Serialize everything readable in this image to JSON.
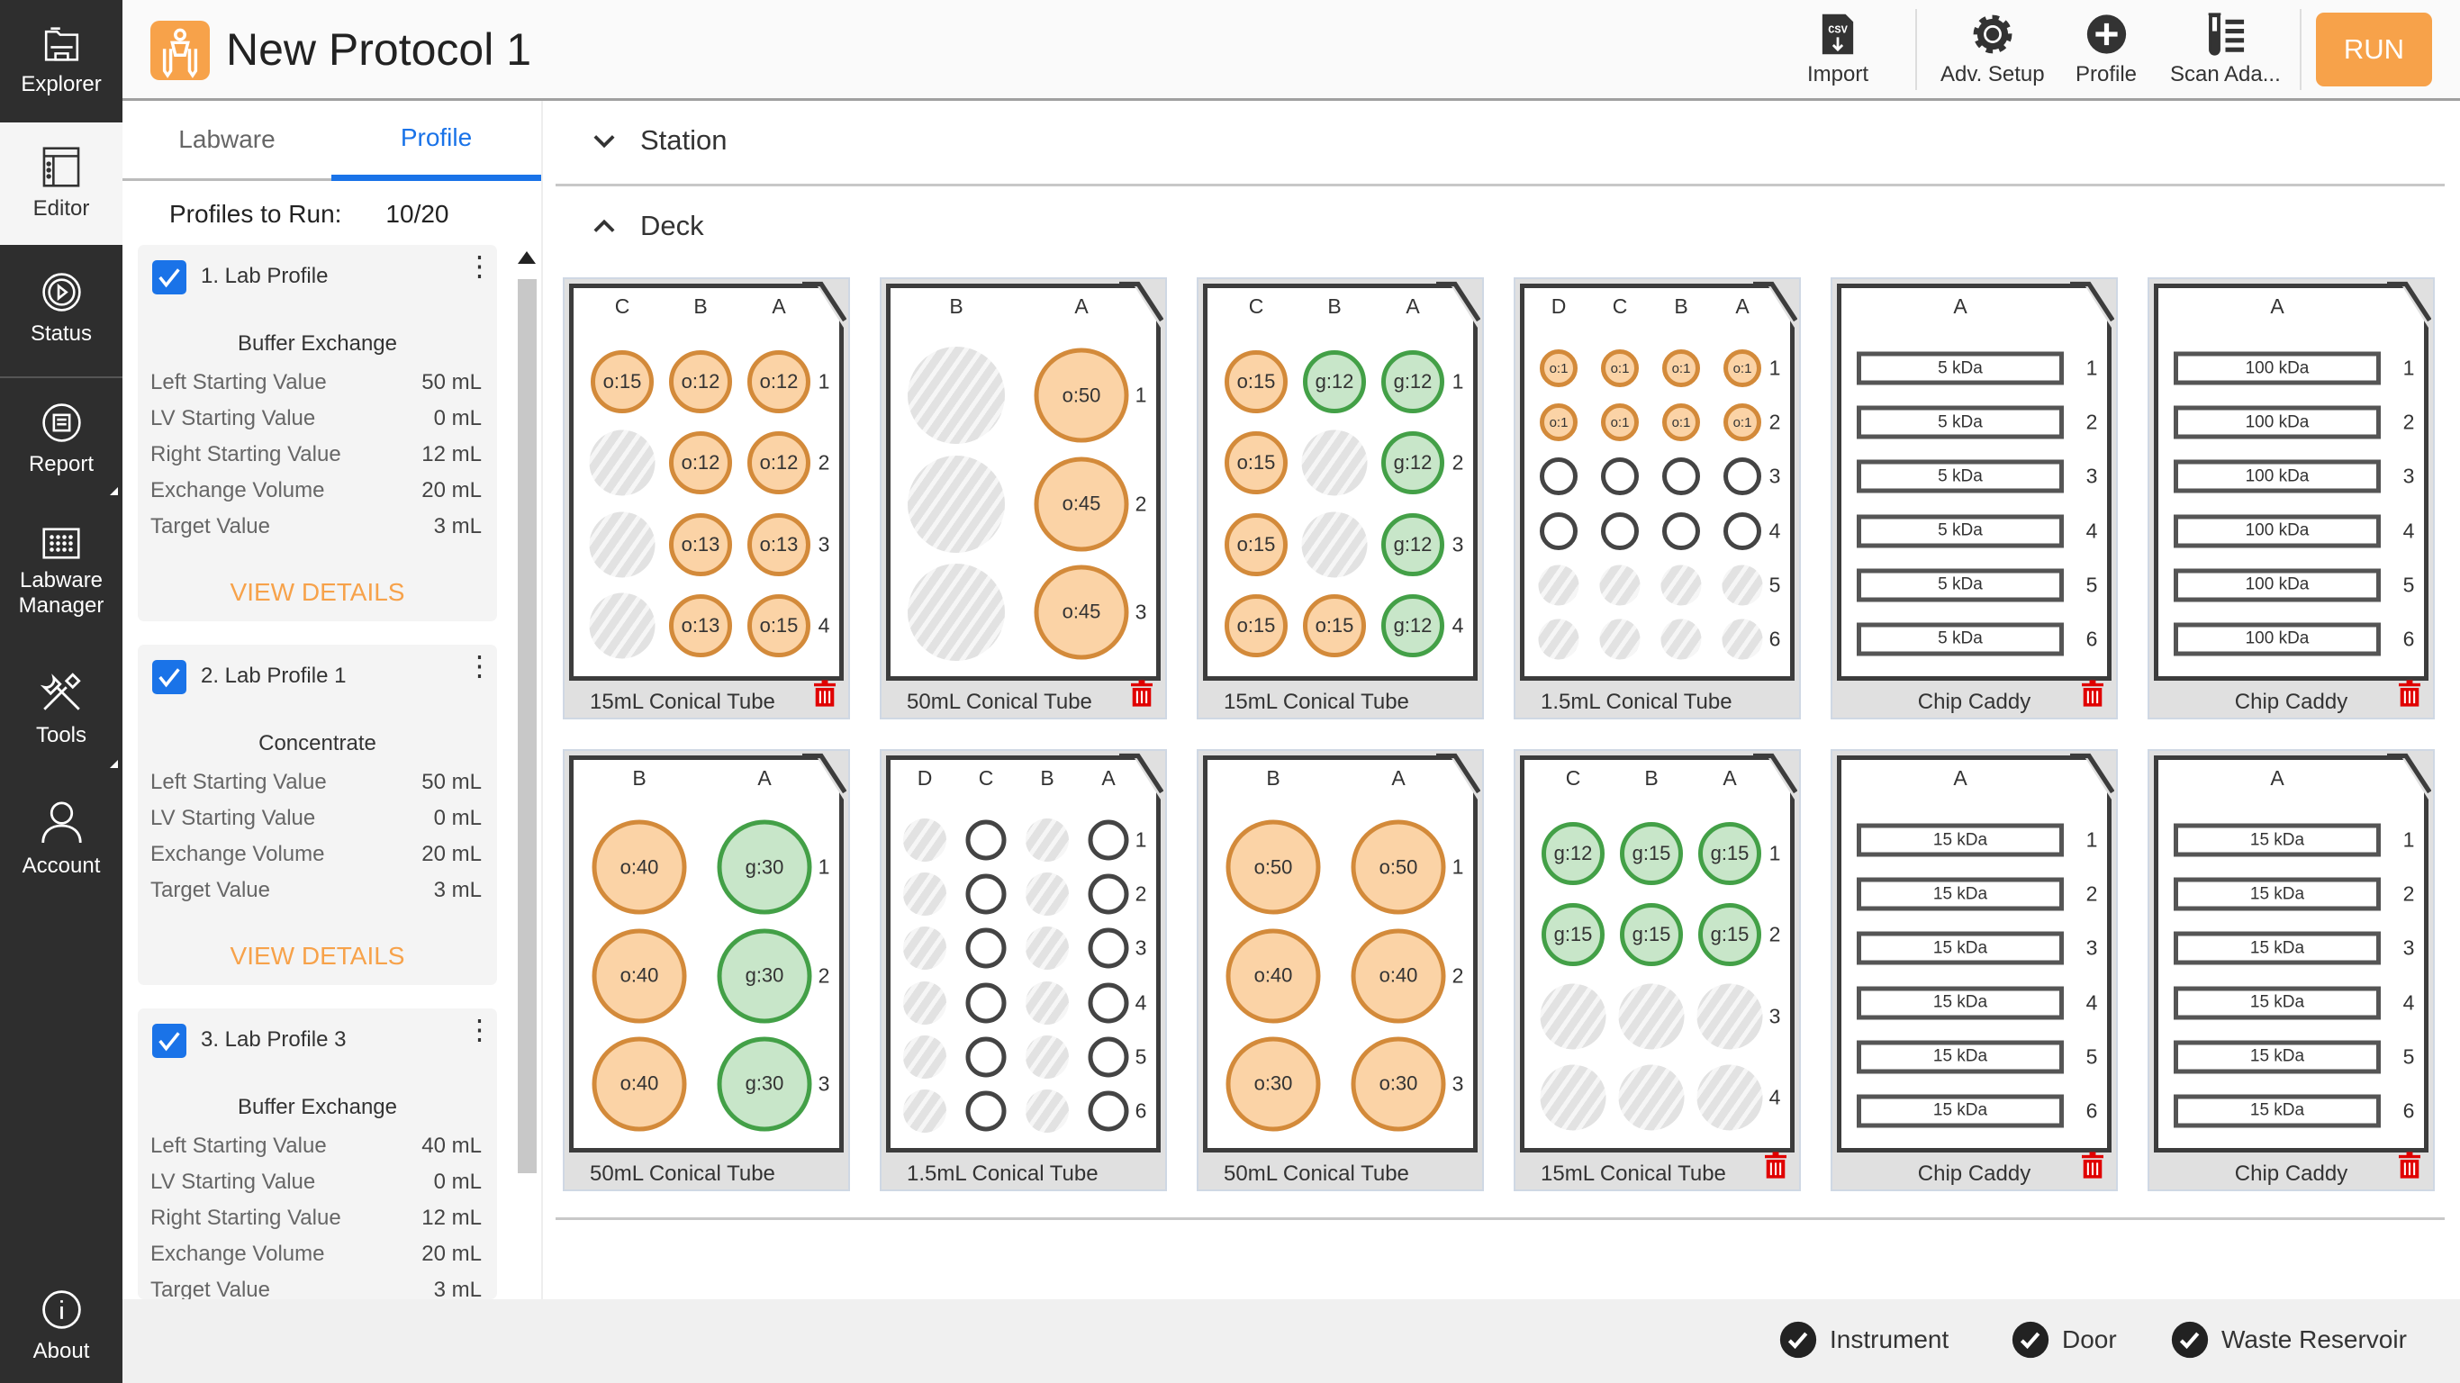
{
  "app": {
    "title": "New Protocol 1"
  },
  "sidebar": {
    "items": [
      {
        "label": "Explorer",
        "icon": "explorer-icon"
      },
      {
        "label": "Editor",
        "icon": "editor-icon"
      },
      {
        "label": "Status",
        "icon": "status-icon"
      },
      {
        "label": "Report",
        "icon": "report-icon"
      },
      {
        "label": "Labware Manager",
        "icon": "labware-manager-icon"
      },
      {
        "label": "Tools",
        "icon": "tools-icon"
      },
      {
        "label": "Account",
        "icon": "account-icon"
      }
    ],
    "about": "About"
  },
  "toolbar": {
    "import": "Import",
    "adv_setup": "Adv. Setup",
    "profile": "Profile",
    "scan": "Scan Ada...",
    "run": "RUN"
  },
  "left_panel": {
    "tabs": [
      {
        "label": "Labware"
      },
      {
        "label": "Profile",
        "active": true
      }
    ],
    "profiles_to_run_label": "Profiles to Run:",
    "profiles_to_run_value": "10/20",
    "profiles": [
      {
        "name": "1. Lab Profile",
        "checked": true,
        "type": "Buffer Exchange",
        "fields": [
          [
            "Left Starting Value",
            "50 mL"
          ],
          [
            "LV Starting Value",
            "0 mL"
          ],
          [
            "Right Starting Value",
            "12 mL"
          ],
          [
            "Exchange Volume",
            "20 mL"
          ],
          [
            "Target Value",
            "3 mL"
          ]
        ],
        "link": "VIEW DETAILS"
      },
      {
        "name": "2. Lab Profile 1",
        "checked": true,
        "type": "Concentrate",
        "fields": [
          [
            "Left Starting Value",
            "50 mL"
          ],
          [
            "LV Starting Value",
            "0 mL"
          ],
          [
            "Exchange Volume",
            "20 mL"
          ],
          [
            "Target Value",
            "3 mL"
          ]
        ],
        "link": "VIEW DETAILS"
      },
      {
        "name": "3. Lab Profile 3",
        "checked": true,
        "type": "Buffer Exchange",
        "fields": [
          [
            "Left Starting Value",
            "40 mL"
          ],
          [
            "LV Starting Value",
            "0 mL"
          ],
          [
            "Right Starting Value",
            "12 mL"
          ],
          [
            "Exchange Volume",
            "20 mL"
          ],
          [
            "Target Value",
            "3 mL"
          ]
        ]
      }
    ]
  },
  "main": {
    "station_label": "Station",
    "deck_label": "Deck"
  },
  "colors": {
    "accent": "#1a73e8",
    "run": "#f7a24a",
    "well_orange": "#fbd3a6",
    "well_green": "#c8e6c9",
    "trash": "#e00000"
  },
  "racks": [
    {
      "name": "15mL Conical Tube",
      "cols": [
        "C",
        "B",
        "A"
      ],
      "size": 40,
      "trash": true,
      "wells": [
        [
          "o:15",
          "o:12",
          "o:12"
        ],
        [
          "x",
          "o:12",
          "o:12"
        ],
        [
          "x",
          "o:13",
          "o:13"
        ],
        [
          "x",
          "o:13",
          "o:15"
        ]
      ]
    },
    {
      "name": "50mL Conical Tube",
      "cols": [
        "B",
        "A"
      ],
      "size": 60,
      "trash": true,
      "wells": [
        [
          "x",
          "o:50"
        ],
        [
          "x",
          "o:45"
        ],
        [
          "x",
          "o:45"
        ]
      ]
    },
    {
      "name": "15mL Conical Tube",
      "cols": [
        "C",
        "B",
        "A"
      ],
      "size": 40,
      "trash": false,
      "wells": [
        [
          "o:15",
          "g:12",
          "g:12"
        ],
        [
          "o:15",
          "x",
          "g:12"
        ],
        [
          "o:15",
          "x",
          "g:12"
        ],
        [
          "o:15",
          "o:15",
          "g:12"
        ]
      ]
    },
    {
      "name": "1.5mL Conical Tube",
      "cols": [
        "D",
        "C",
        "B",
        "A"
      ],
      "size": 24,
      "trash": false,
      "wells": [
        [
          "o:1",
          "o:1",
          "o:1",
          "o:1"
        ],
        [
          "o:1",
          "o:1",
          "o:1",
          "o:1"
        ],
        [
          "e",
          "e",
          "e",
          "e"
        ],
        [
          "e",
          "e",
          "e",
          "e"
        ],
        [
          "x",
          "x",
          "x",
          "x"
        ],
        [
          "x",
          "x",
          "x",
          "x"
        ]
      ]
    },
    {
      "name": "Chip Caddy",
      "cols": [
        "A"
      ],
      "chips": [
        "5 kDa",
        "5 kDa",
        "5 kDa",
        "5 kDa",
        "5 kDa",
        "5 kDa"
      ],
      "trash": true
    },
    {
      "name": "Chip Caddy",
      "cols": [
        "A"
      ],
      "chips": [
        "100 kDa",
        "100 kDa",
        "100 kDa",
        "100 kDa",
        "100 kDa",
        "100 kDa"
      ],
      "trash": true
    },
    {
      "name": "50mL Conical Tube",
      "cols": [
        "B",
        "A"
      ],
      "size": 60,
      "trash": false,
      "wells": [
        [
          "o:40",
          "g:30"
        ],
        [
          "o:40",
          "g:30"
        ],
        [
          "o:40",
          "g:30"
        ]
      ]
    },
    {
      "name": "1.5mL Conical Tube",
      "cols": [
        "D",
        "C",
        "B",
        "A"
      ],
      "size": 26,
      "trash": false,
      "wells": [
        [
          "x",
          "e",
          "x",
          "e"
        ],
        [
          "x",
          "e",
          "x",
          "e"
        ],
        [
          "x",
          "e",
          "x",
          "e"
        ],
        [
          "x",
          "e",
          "x",
          "e"
        ],
        [
          "x",
          "e",
          "x",
          "e"
        ],
        [
          "x",
          "e",
          "x",
          "e"
        ]
      ]
    },
    {
      "name": "50mL Conical Tube",
      "cols": [
        "B",
        "A"
      ],
      "size": 60,
      "trash": false,
      "wells": [
        [
          "o:50",
          "o:50"
        ],
        [
          "o:40",
          "o:40"
        ],
        [
          "o:30",
          "o:30"
        ]
      ]
    },
    {
      "name": "15mL Conical Tube",
      "cols": [
        "C",
        "B",
        "A"
      ],
      "size": 40,
      "trash": true,
      "wells": [
        [
          "g:12",
          "g:15",
          "g:15"
        ],
        [
          "g:15",
          "g:15",
          "g:15"
        ],
        [
          "x",
          "x",
          "x"
        ],
        [
          "x",
          "x",
          "x"
        ]
      ]
    },
    {
      "name": "Chip Caddy",
      "cols": [
        "A"
      ],
      "chips": [
        "15 kDa",
        "15 kDa",
        "15 kDa",
        "15 kDa",
        "15 kDa",
        "15 kDa"
      ],
      "trash": true
    },
    {
      "name": "Chip Caddy",
      "cols": [
        "A"
      ],
      "chips": [
        "15 kDa",
        "15 kDa",
        "15 kDa",
        "15 kDa",
        "15 kDa",
        "15 kDa"
      ],
      "trash": true
    }
  ],
  "footer": {
    "status": [
      {
        "label": "Instrument",
        "ok": true
      },
      {
        "label": "Door",
        "ok": true
      },
      {
        "label": "Waste Reservoir",
        "ok": true
      }
    ]
  }
}
